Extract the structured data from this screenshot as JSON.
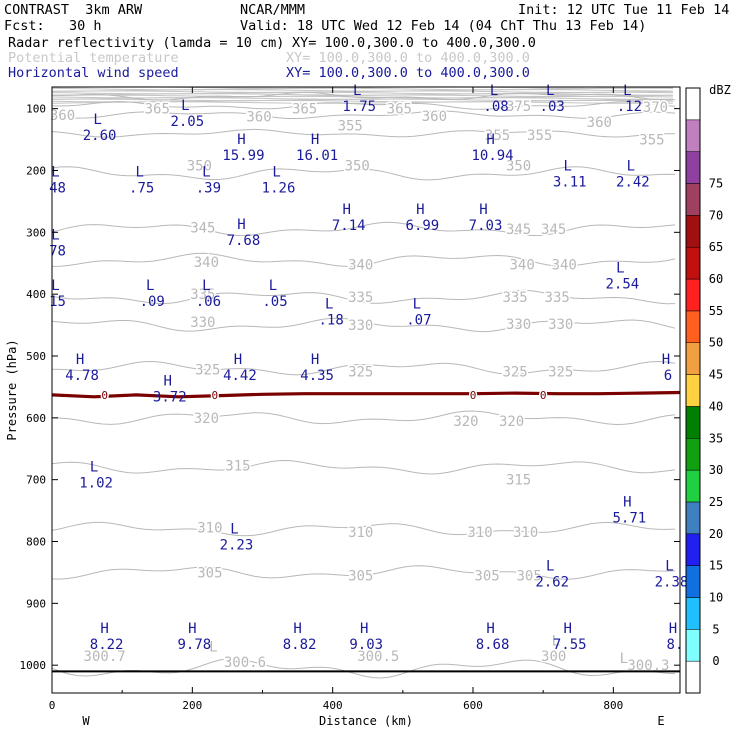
{
  "header": {
    "model": "CONTRAST  3km ARW",
    "org": "NCAR/MMM",
    "init": "Init: 12 UTC Tue 11 Feb 14",
    "fcst": "Fcst:   30 h",
    "valid": "Valid: 18 UTC Wed 12 Feb 14 (04 ChT Thu 13 Feb 14)",
    "fields": [
      {
        "name": "Radar reflectivity (lamda = 10 cm)",
        "xy": "XY= 100.0,300.0 to 400.0,300.0",
        "color": "#000000"
      },
      {
        "name": "Potential temperature",
        "xy": "XY= 100.0,300.0 to 400.0,300.0",
        "color": "#c8c8c8"
      },
      {
        "name": "Horizontal wind speed",
        "xy": "XY= 100.0,300.0 to 400.0,300.0",
        "color": "#1a1a9c"
      }
    ]
  },
  "chart_data": {
    "type": "contour-cross-section",
    "xlabel": "Distance (km)",
    "ylabel": "Pressure (hPa)",
    "xlim": [
      0,
      895
    ],
    "ylim": [
      1045,
      65
    ],
    "x_ticks": [
      0,
      200,
      400,
      600,
      800
    ],
    "y_ticks": [
      100,
      200,
      300,
      400,
      500,
      600,
      700,
      800,
      900,
      1000
    ],
    "edge_labels": {
      "west": "W",
      "east": "E"
    },
    "ground_pressure": 1010,
    "theta_contours": [
      {
        "value": 300,
        "p": 1005
      },
      {
        "value": 305,
        "p": 850
      },
      {
        "value": 310,
        "p": 780
      },
      {
        "value": 315,
        "p": 680
      },
      {
        "value": 320,
        "p": 600
      },
      {
        "value": 325,
        "p": 520
      },
      {
        "value": 330,
        "p": 450
      },
      {
        "value": 335,
        "p": 405
      },
      {
        "value": 340,
        "p": 345
      },
      {
        "value": 345,
        "p": 295
      },
      {
        "value": 350,
        "p": 205
      },
      {
        "value": 355,
        "p": 140
      },
      {
        "value": 360,
        "p": 110
      },
      {
        "value": 365,
        "p": 95
      },
      {
        "value": 370,
        "p": 80
      }
    ],
    "theta_labels": [
      {
        "text": "360",
        "x": 15,
        "p": 110
      },
      {
        "text": "365",
        "x": 150,
        "p": 100
      },
      {
        "text": "360",
        "x": 295,
        "p": 113
      },
      {
        "text": "365",
        "x": 360,
        "p": 100
      },
      {
        "text": "355",
        "x": 425,
        "p": 127
      },
      {
        "text": "365",
        "x": 495,
        "p": 100
      },
      {
        "text": "360",
        "x": 545,
        "p": 112
      },
      {
        "text": "375",
        "x": 665,
        "p": 96
      },
      {
        "text": "360",
        "x": 780,
        "p": 122
      },
      {
        "text": "370",
        "x": 860,
        "p": 97
      },
      {
        "text": "355",
        "x": 635,
        "p": 143
      },
      {
        "text": "355",
        "x": 695,
        "p": 143
      },
      {
        "text": "355",
        "x": 855,
        "p": 150
      },
      {
        "text": "350",
        "x": 210,
        "p": 192
      },
      {
        "text": "350",
        "x": 435,
        "p": 192
      },
      {
        "text": "350",
        "x": 665,
        "p": 192
      },
      {
        "text": "345",
        "x": 215,
        "p": 292
      },
      {
        "text": "345",
        "x": 665,
        "p": 295
      },
      {
        "text": "345",
        "x": 715,
        "p": 295
      },
      {
        "text": "340",
        "x": 220,
        "p": 348
      },
      {
        "text": "340",
        "x": 440,
        "p": 352
      },
      {
        "text": "340",
        "x": 670,
        "p": 352
      },
      {
        "text": "340",
        "x": 730,
        "p": 352
      },
      {
        "text": "335",
        "x": 215,
        "p": 400
      },
      {
        "text": "335",
        "x": 440,
        "p": 405
      },
      {
        "text": "335",
        "x": 660,
        "p": 405
      },
      {
        "text": "335",
        "x": 720,
        "p": 405
      },
      {
        "text": "330",
        "x": 215,
        "p": 445
      },
      {
        "text": "330",
        "x": 440,
        "p": 450
      },
      {
        "text": "330",
        "x": 665,
        "p": 448
      },
      {
        "text": "330",
        "x": 725,
        "p": 448
      },
      {
        "text": "325",
        "x": 222,
        "p": 522
      },
      {
        "text": "325",
        "x": 440,
        "p": 525
      },
      {
        "text": "325",
        "x": 660,
        "p": 525
      },
      {
        "text": "325",
        "x": 725,
        "p": 525
      },
      {
        "text": "320",
        "x": 220,
        "p": 600
      },
      {
        "text": "320",
        "x": 590,
        "p": 605
      },
      {
        "text": "320",
        "x": 655,
        "p": 605
      },
      {
        "text": "315",
        "x": 265,
        "p": 677
      },
      {
        "text": "315",
        "x": 665,
        "p": 700
      },
      {
        "text": "310",
        "x": 225,
        "p": 777
      },
      {
        "text": "310",
        "x": 440,
        "p": 785
      },
      {
        "text": "310",
        "x": 610,
        "p": 785
      },
      {
        "text": "310",
        "x": 675,
        "p": 785
      },
      {
        "text": "305",
        "x": 225,
        "p": 850
      },
      {
        "text": "305",
        "x": 440,
        "p": 855
      },
      {
        "text": "305",
        "x": 620,
        "p": 855
      },
      {
        "text": "305",
        "x": 680,
        "p": 855
      },
      {
        "text": "300.7",
        "x": 75,
        "p": 985
      },
      {
        "text": "300.6",
        "x": 275,
        "p": 995
      },
      {
        "text": "300.5",
        "x": 465,
        "p": 985
      },
      {
        "text": "300",
        "x": 715,
        "p": 985
      },
      {
        "text": "300.3",
        "x": 850,
        "p": 1000
      }
    ],
    "theta_lows": [
      {
        "x": 230,
        "p": 970
      },
      {
        "x": 718,
        "p": 960
      },
      {
        "x": 815,
        "p": 988
      }
    ],
    "freezing_level": {
      "label": "0",
      "points": [
        [
          0,
          563
        ],
        [
          60,
          566
        ],
        [
          120,
          563
        ],
        [
          180,
          566
        ],
        [
          240,
          564
        ],
        [
          300,
          562
        ],
        [
          360,
          561
        ],
        [
          420,
          561
        ],
        [
          480,
          561
        ],
        [
          540,
          561
        ],
        [
          600,
          561
        ],
        [
          660,
          560
        ],
        [
          720,
          561
        ],
        [
          780,
          561
        ],
        [
          840,
          560
        ],
        [
          895,
          559
        ]
      ],
      "label_x": [
        75,
        232,
        600,
        700
      ]
    },
    "wind_extrema": [
      {
        "kind": "L",
        "value": "1.75",
        "x": 435,
        "p": 78
      },
      {
        "kind": "L",
        "value": ".08",
        "x": 630,
        "p": 78
      },
      {
        "kind": "L",
        "value": ".03",
        "x": 710,
        "p": 78
      },
      {
        "kind": "L",
        "value": ".12",
        "x": 820,
        "p": 78
      },
      {
        "kind": "L",
        "value": "2.05",
        "x": 190,
        "p": 102
      },
      {
        "kind": "L",
        "value": "2.60",
        "x": 65,
        "p": 125
      },
      {
        "kind": "H",
        "value": "15.99",
        "x": 270,
        "p": 157
      },
      {
        "kind": "H",
        "value": "16.01",
        "x": 375,
        "p": 157
      },
      {
        "kind": "H",
        "value": "10.94",
        "x": 625,
        "p": 157
      },
      {
        "kind": "L",
        "value": "48",
        "x": 5,
        "p": 210
      },
      {
        "kind": "L",
        "value": ".75",
        "x": 125,
        "p": 210
      },
      {
        "kind": "L",
        "value": ".39",
        "x": 220,
        "p": 210
      },
      {
        "kind": "L",
        "value": "1.26",
        "x": 320,
        "p": 210
      },
      {
        "kind": "L",
        "value": "3.11",
        "x": 735,
        "p": 200
      },
      {
        "kind": "L",
        "value": "2.42",
        "x": 825,
        "p": 200
      },
      {
        "kind": "H",
        "value": "7.14",
        "x": 420,
        "p": 270
      },
      {
        "kind": "H",
        "value": "6.99",
        "x": 525,
        "p": 270
      },
      {
        "kind": "H",
        "value": "7.03",
        "x": 615,
        "p": 270
      },
      {
        "kind": "L",
        "value": "78",
        "x": 5,
        "p": 312
      },
      {
        "kind": "H",
        "value": "7.68",
        "x": 270,
        "p": 295
      },
      {
        "kind": "L",
        "value": "2.54",
        "x": 810,
        "p": 365
      },
      {
        "kind": "L",
        "value": "15",
        "x": 5,
        "p": 393
      },
      {
        "kind": "L",
        "value": ".09",
        "x": 140,
        "p": 393
      },
      {
        "kind": "L",
        "value": ".06",
        "x": 220,
        "p": 393
      },
      {
        "kind": "L",
        "value": ".05",
        "x": 315,
        "p": 393
      },
      {
        "kind": "L",
        "value": ".18",
        "x": 395,
        "p": 423
      },
      {
        "kind": "L",
        "value": ".07",
        "x": 520,
        "p": 423
      },
      {
        "kind": "H",
        "value": "4.78",
        "x": 40,
        "p": 513
      },
      {
        "kind": "H",
        "value": "4.42",
        "x": 265,
        "p": 513
      },
      {
        "kind": "H",
        "value": "4.35",
        "x": 375,
        "p": 513
      },
      {
        "kind": "H",
        "value": "6",
        "x": 875,
        "p": 513
      },
      {
        "kind": "H",
        "value": "3.72",
        "x": 165,
        "p": 548
      },
      {
        "kind": "L",
        "value": "1.02",
        "x": 60,
        "p": 687
      },
      {
        "kind": "H",
        "value": "5.71",
        "x": 820,
        "p": 743
      },
      {
        "kind": "L",
        "value": "2.23",
        "x": 260,
        "p": 787
      },
      {
        "kind": "L",
        "value": "2.62",
        "x": 710,
        "p": 847
      },
      {
        "kind": "L",
        "value": "2.38",
        "x": 880,
        "p": 847
      },
      {
        "kind": "H",
        "value": "8.22",
        "x": 75,
        "p": 948
      },
      {
        "kind": "H",
        "value": "9.78",
        "x": 200,
        "p": 948
      },
      {
        "kind": "H",
        "value": "8.82",
        "x": 350,
        "p": 948
      },
      {
        "kind": "H",
        "value": "9.03",
        "x": 445,
        "p": 948
      },
      {
        "kind": "H",
        "value": "8.68",
        "x": 625,
        "p": 948
      },
      {
        "kind": "H",
        "value": "7.55",
        "x": 735,
        "p": 948
      },
      {
        "kind": "H",
        "value": "8.",
        "x": 885,
        "p": 948
      }
    ],
    "colorbar": {
      "unit": "dBZ",
      "levels": [
        "0",
        "5",
        "10",
        "15",
        "20",
        "25",
        "30",
        "35",
        "40",
        "45",
        "50",
        "55",
        "60",
        "65",
        "70",
        "75"
      ],
      "colors": [
        "#ffffff",
        "#80ffff",
        "#20c0ff",
        "#1070e0",
        "#2020f0",
        "#4080c0",
        "#20d040",
        "#10a010",
        "#008000",
        "#ffd040",
        "#f0a040",
        "#ff6020",
        "#ff2020",
        "#c01010",
        "#a01010",
        "#a04060",
        "#9040a0",
        "#c080c0",
        "#ffffff"
      ]
    }
  }
}
